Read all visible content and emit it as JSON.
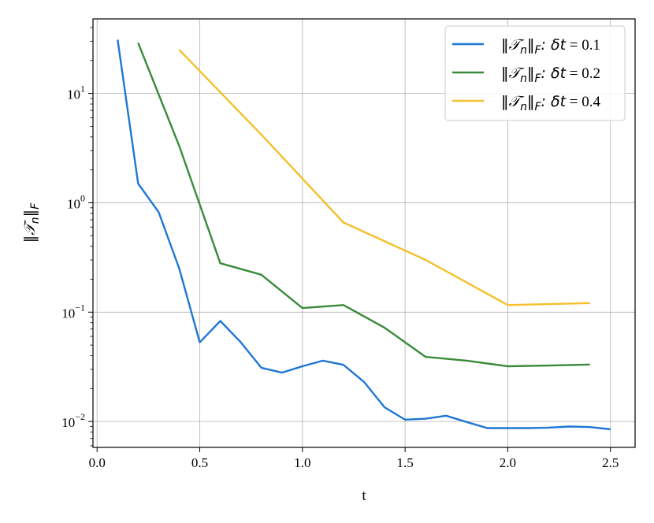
{
  "chart_data": {
    "type": "line",
    "xlabel": "t",
    "ylabel": "‖𝒯ₙ‖_F",
    "ylabel_parts": {
      "norm_open": "‖",
      "symbol": "𝒯",
      "sub": "n",
      "norm_close": "‖",
      "subF": "F"
    },
    "x_scale": "linear",
    "y_scale": "log",
    "xlim": [
      -0.02,
      2.62
    ],
    "ylim": [
      0.0058,
      48
    ],
    "xticks": [
      0.0,
      0.5,
      1.0,
      1.5,
      2.0,
      2.5
    ],
    "xtick_labels": [
      "0.0",
      "0.5",
      "1.0",
      "1.5",
      "2.0",
      "2.5"
    ],
    "yticks": [
      0.01,
      0.1,
      1,
      10
    ],
    "ytick_labels": [
      {
        "base": "10",
        "exp": "−2"
      },
      {
        "base": "10",
        "exp": "−1"
      },
      {
        "base": "10",
        "exp": "0"
      },
      {
        "base": "10",
        "exp": "1"
      }
    ],
    "grid": true,
    "legend_position": "top-right",
    "series": [
      {
        "name": "‖𝒯ₙ‖_F: δt = 0.1",
        "legend_parts": {
          "prefix": "‖𝒯",
          "sub": "n",
          "mid": "‖",
          "subF": "F",
          "rest": ": δt",
          "eq": " = 0.1"
        },
        "color": "#1f77d4",
        "x": [
          0.1,
          0.2,
          0.3,
          0.4,
          0.5,
          0.6,
          0.7,
          0.8,
          0.9,
          1.0,
          1.1,
          1.2,
          1.3,
          1.4,
          1.5,
          1.6,
          1.7,
          1.8,
          1.9,
          2.0,
          2.1,
          2.2,
          2.3,
          2.4,
          2.5
        ],
        "y": [
          31,
          1.5,
          0.82,
          0.25,
          0.053,
          0.083,
          0.053,
          0.031,
          0.028,
          0.032,
          0.036,
          0.033,
          0.023,
          0.0135,
          0.0104,
          0.0106,
          0.0113,
          0.0099,
          0.0087,
          0.0087,
          0.0087,
          0.0088,
          0.009,
          0.0089,
          0.0085
        ]
      },
      {
        "name": "‖𝒯ₙ‖_F: δt = 0.2",
        "legend_parts": {
          "prefix": "‖𝒯",
          "sub": "n",
          "mid": "‖",
          "subF": "F",
          "rest": ": δt",
          "eq": " = 0.2"
        },
        "color": "#3a8a3a",
        "x": [
          0.2,
          0.4,
          0.6,
          0.8,
          1.0,
          1.2,
          1.4,
          1.6,
          1.8,
          2.0,
          2.2,
          2.4
        ],
        "y": [
          29,
          3.3,
          0.28,
          0.22,
          0.109,
          0.116,
          0.072,
          0.039,
          0.036,
          0.032,
          0.0325,
          0.0332
        ]
      },
      {
        "name": "‖𝒯ₙ‖_F: δt = 0.4",
        "legend_parts": {
          "prefix": "‖𝒯",
          "sub": "n",
          "mid": "‖",
          "subF": "F",
          "rest": ": δt",
          "eq": " = 0.4"
        },
        "color": "#f5bf2a",
        "x": [
          0.4,
          0.8,
          1.2,
          1.6,
          2.0,
          2.4
        ],
        "y": [
          25,
          4.2,
          0.66,
          0.3,
          0.116,
          0.121
        ]
      }
    ]
  }
}
